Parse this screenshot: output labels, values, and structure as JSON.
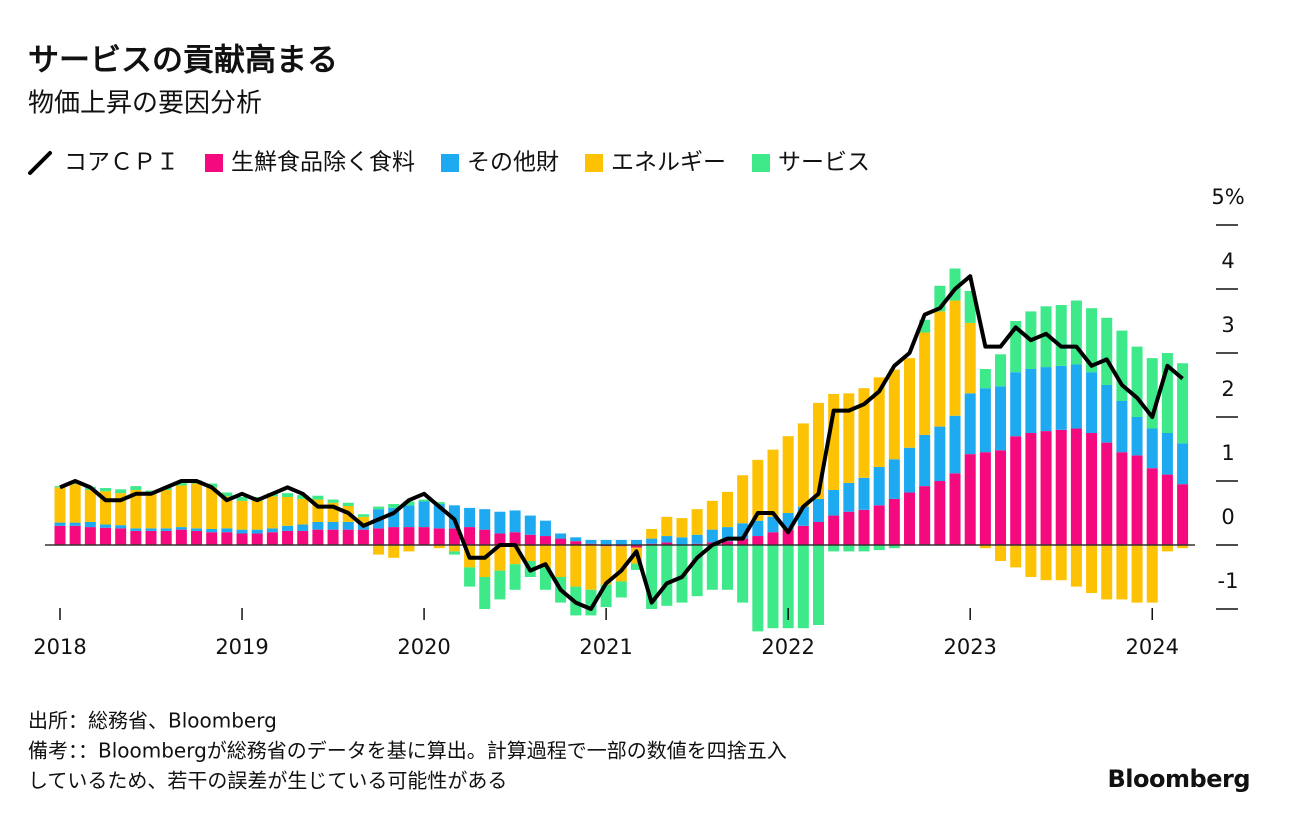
{
  "chart_data": {
    "type": "stacked-bar-line",
    "title": "サービスの貢献高まる",
    "subtitle": "物価上昇の要因分析",
    "categories": [
      "2018",
      null,
      null,
      null,
      null,
      null,
      null,
      null,
      null,
      null,
      null,
      null,
      "2019",
      null,
      null,
      null,
      null,
      null,
      null,
      null,
      null,
      null,
      null,
      null,
      "2020",
      null,
      null,
      null,
      null,
      null,
      null,
      null,
      null,
      null,
      null,
      null,
      "2021",
      null,
      null,
      null,
      null,
      null,
      null,
      null,
      null,
      null,
      null,
      null,
      "2022",
      null,
      null,
      null,
      null,
      null,
      null,
      null,
      null,
      null,
      null,
      null,
      "2023",
      null,
      null,
      null,
      null,
      null,
      null,
      null,
      null,
      null,
      null,
      null,
      "2024",
      null,
      null
    ],
    "line": {
      "name": "コアＣＰＩ",
      "color": "#000000",
      "values": [
        0.9,
        1.0,
        0.9,
        0.7,
        0.7,
        0.8,
        0.8,
        0.9,
        1.0,
        1.0,
        0.9,
        0.7,
        0.8,
        0.7,
        0.8,
        0.9,
        0.8,
        0.6,
        0.6,
        0.5,
        0.3,
        0.4,
        0.5,
        0.7,
        0.8,
        0.6,
        0.4,
        -0.2,
        -0.2,
        0.0,
        0.0,
        -0.4,
        -0.3,
        -0.7,
        -0.9,
        -1.0,
        -0.6,
        -0.4,
        -0.1,
        -0.9,
        -0.6,
        -0.5,
        -0.2,
        0.0,
        0.1,
        0.1,
        0.5,
        0.5,
        0.2,
        0.6,
        0.8,
        2.1,
        2.1,
        2.2,
        2.4,
        2.8,
        3.0,
        3.6,
        3.7,
        4.0,
        4.2,
        3.1,
        3.1,
        3.4,
        3.2,
        3.3,
        3.1,
        3.1,
        2.8,
        2.9,
        2.5,
        2.3,
        2.0,
        2.8,
        2.6
      ]
    },
    "series": [
      {
        "name": "生鮮食品除く食料",
        "color": "#f5097f",
        "values": [
          0.3,
          0.3,
          0.28,
          0.27,
          0.26,
          0.22,
          0.22,
          0.22,
          0.24,
          0.22,
          0.2,
          0.2,
          0.18,
          0.18,
          0.2,
          0.22,
          0.22,
          0.24,
          0.24,
          0.24,
          0.24,
          0.26,
          0.28,
          0.28,
          0.28,
          0.26,
          0.26,
          0.28,
          0.24,
          0.18,
          0.2,
          0.16,
          0.14,
          0.1,
          0.06,
          0.02,
          -0.02,
          -0.02,
          -0.04,
          0.02,
          0.04,
          0.0,
          0.02,
          0.04,
          0.06,
          0.1,
          0.14,
          0.2,
          0.24,
          0.3,
          0.36,
          0.46,
          0.52,
          0.55,
          0.62,
          0.72,
          0.82,
          0.92,
          1.0,
          1.12,
          1.42,
          1.45,
          1.48,
          1.7,
          1.75,
          1.78,
          1.8,
          1.82,
          1.75,
          1.6,
          1.45,
          1.4,
          1.2,
          1.1,
          0.95
        ]
      },
      {
        "name": "その他財",
        "color": "#1eaaf1",
        "values": [
          0.05,
          0.05,
          0.08,
          0.05,
          0.05,
          0.04,
          0.04,
          0.04,
          0.04,
          0.04,
          0.05,
          0.06,
          0.06,
          0.06,
          0.06,
          0.08,
          0.1,
          0.12,
          0.12,
          0.12,
          0.1,
          0.3,
          0.3,
          0.34,
          0.4,
          0.38,
          0.36,
          0.3,
          0.32,
          0.34,
          0.34,
          0.3,
          0.24,
          0.08,
          0.06,
          0.06,
          0.08,
          0.08,
          0.08,
          0.08,
          0.1,
          0.12,
          0.14,
          0.2,
          0.22,
          0.24,
          0.24,
          0.24,
          0.26,
          0.3,
          0.36,
          0.4,
          0.45,
          0.5,
          0.6,
          0.62,
          0.7,
          0.8,
          0.85,
          0.9,
          0.95,
          1.0,
          1.0,
          1.0,
          1.0,
          1.0,
          1.0,
          1.0,
          0.95,
          0.9,
          0.8,
          0.6,
          0.62,
          0.65,
          0.64
        ]
      },
      {
        "name": "エネルギー",
        "color": "#fcc203",
        "values": [
          0.55,
          0.6,
          0.5,
          0.52,
          0.5,
          0.6,
          0.55,
          0.6,
          0.65,
          0.7,
          0.65,
          0.5,
          0.45,
          0.45,
          0.5,
          0.45,
          0.4,
          0.35,
          0.3,
          0.25,
          0.1,
          -0.15,
          -0.2,
          -0.1,
          0.0,
          -0.05,
          -0.1,
          -0.35,
          -0.5,
          -0.4,
          -0.3,
          -0.25,
          -0.35,
          -0.5,
          -0.65,
          -0.7,
          -0.6,
          -0.55,
          -0.25,
          0.15,
          0.3,
          0.3,
          0.4,
          0.45,
          0.55,
          0.75,
          0.95,
          1.05,
          1.2,
          1.3,
          1.5,
          1.5,
          1.4,
          1.4,
          1.4,
          1.4,
          1.4,
          1.6,
          1.8,
          1.8,
          1.1,
          -0.05,
          -0.25,
          -0.35,
          -0.5,
          -0.55,
          -0.55,
          -0.65,
          -0.75,
          -0.85,
          -0.85,
          -0.9,
          -0.9,
          -0.1,
          -0.05
        ]
      },
      {
        "name": "サービス",
        "color": "#3ee98a",
        "values": [
          0.02,
          0.03,
          0.05,
          0.05,
          0.06,
          0.06,
          0.04,
          0.04,
          0.05,
          0.05,
          0.06,
          0.06,
          0.06,
          0.06,
          0.05,
          0.06,
          0.06,
          0.06,
          0.05,
          0.05,
          0.04,
          0.04,
          0.06,
          0.06,
          0.03,
          0.03,
          -0.05,
          -0.3,
          -0.5,
          -0.45,
          -0.4,
          -0.25,
          -0.35,
          -0.4,
          -0.45,
          -0.4,
          -0.35,
          -0.25,
          -0.1,
          -1.0,
          -0.95,
          -0.9,
          -0.8,
          -0.7,
          -0.7,
          -0.9,
          -1.35,
          -1.3,
          -1.3,
          -1.3,
          -1.25,
          -0.1,
          -0.1,
          -0.1,
          -0.08,
          -0.05,
          0.0,
          0.2,
          0.4,
          0.5,
          0.5,
          0.3,
          0.5,
          0.8,
          0.9,
          0.95,
          0.95,
          1.0,
          1.0,
          1.05,
          1.1,
          1.1,
          1.1,
          1.25,
          1.25
        ]
      }
    ],
    "ylim": [
      -1.4,
      5
    ],
    "yticks": [
      -1,
      0,
      1,
      2,
      3,
      4,
      {
        "value": 5,
        "label": "5%"
      }
    ]
  },
  "source": "出所：総務省、Bloomberg",
  "notes": [
    "備考：：Bloombergが総務省のデータを基に算出。計算過程で一部の数値を四捨五入",
    "しているため、若干の誤差が生じている可能性がある"
  ],
  "brand": "Bloomberg"
}
